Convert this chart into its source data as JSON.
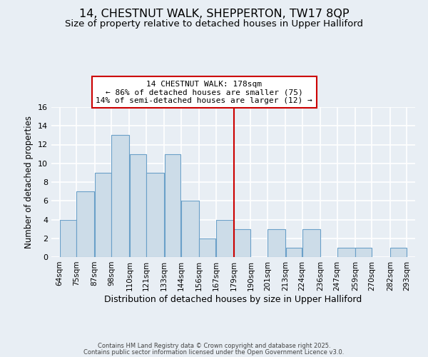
{
  "title": "14, CHESTNUT WALK, SHEPPERTON, TW17 8QP",
  "subtitle": "Size of property relative to detached houses in Upper Halliford",
  "xlabel": "Distribution of detached houses by size in Upper Halliford",
  "ylabel": "Number of detached properties",
  "bin_edges": [
    64,
    75,
    87,
    98,
    110,
    121,
    133,
    144,
    156,
    167,
    179,
    190,
    201,
    213,
    224,
    236,
    247,
    259,
    270,
    282,
    293
  ],
  "bar_heights": [
    4,
    7,
    9,
    13,
    11,
    9,
    11,
    6,
    2,
    4,
    3,
    0,
    3,
    1,
    3,
    0,
    1,
    1,
    0,
    1
  ],
  "bar_color": "#ccdce8",
  "bar_edgecolor": "#6aa0c8",
  "vline_x": 179,
  "vline_color": "#cc0000",
  "ylim": [
    0,
    16
  ],
  "yticks": [
    0,
    2,
    4,
    6,
    8,
    10,
    12,
    14,
    16
  ],
  "annotation_title": "14 CHESTNUT WALK: 178sqm",
  "annotation_line1": "← 86% of detached houses are smaller (75)",
  "annotation_line2": "14% of semi-detached houses are larger (12) →",
  "footer1": "Contains HM Land Registry data © Crown copyright and database right 2025.",
  "footer2": "Contains public sector information licensed under the Open Government Licence v3.0.",
  "background_color": "#e8eef4",
  "grid_color": "#ffffff",
  "title_fontsize": 11.5,
  "subtitle_fontsize": 9.5,
  "ylabel_fontsize": 8.5,
  "xlabel_fontsize": 9,
  "tick_labels": [
    "64sqm",
    "75sqm",
    "87sqm",
    "98sqm",
    "110sqm",
    "121sqm",
    "133sqm",
    "144sqm",
    "156sqm",
    "167sqm",
    "179sqm",
    "190sqm",
    "201sqm",
    "213sqm",
    "224sqm",
    "236sqm",
    "247sqm",
    "259sqm",
    "270sqm",
    "282sqm",
    "293sqm"
  ]
}
